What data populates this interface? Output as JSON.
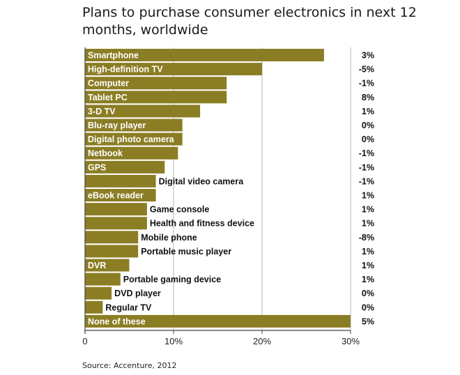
{
  "chart_data": {
    "type": "bar",
    "orientation": "horizontal",
    "title": "Plans to purchase consumer electronics in next 12 months, worldwide",
    "source": "Source: Accenture, 2012",
    "xlim": [
      0,
      30
    ],
    "x_ticks": [
      {
        "value": 0,
        "label": "0"
      },
      {
        "value": 10,
        "label": "10%"
      },
      {
        "value": 20,
        "label": "20%"
      },
      {
        "value": 30,
        "label": "30%"
      }
    ],
    "grid": true,
    "bar_color": "#8b7d24",
    "categories": [
      "Smartphone",
      "High-definition TV",
      "Computer",
      "Tablet PC",
      "3-D TV",
      "Blu-ray player",
      "Digital photo camera",
      "Netbook",
      "GPS",
      "Digital video camera",
      "eBook reader",
      "Game console",
      "Health and fitness device",
      "Mobile phone",
      "Portable music player",
      "DVR",
      "Portable gaming device",
      "DVD player",
      "Regular TV",
      "None of these"
    ],
    "values": [
      27,
      20,
      16,
      16,
      13,
      11,
      11,
      10.5,
      9,
      8,
      8,
      7,
      7,
      6,
      6,
      5,
      4,
      3,
      2,
      30
    ],
    "changes": [
      "3%",
      "-5%",
      "-1%",
      "8%",
      "1%",
      "0%",
      "0%",
      "-1%",
      "-1%",
      "-1%",
      "1%",
      "1%",
      "1%",
      "-8%",
      "1%",
      "1%",
      "1%",
      "0%",
      "0%",
      "5%"
    ]
  }
}
